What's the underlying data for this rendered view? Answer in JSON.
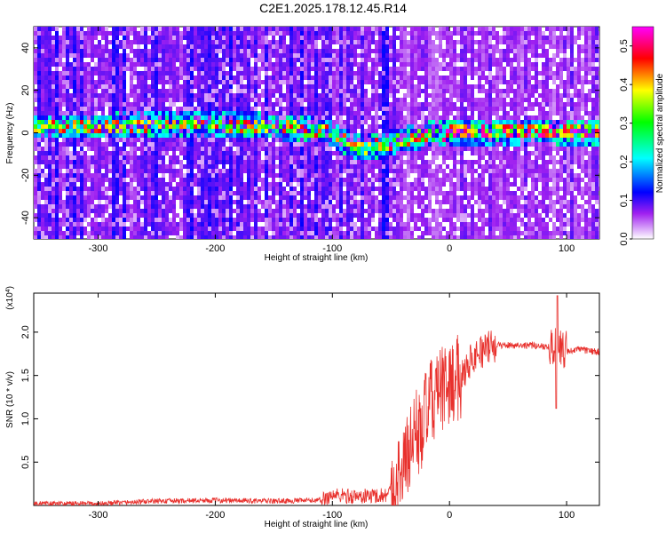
{
  "title": "C2E1.2025.178.12.45.R14",
  "chart_data": [
    {
      "type": "heatmap",
      "xlabel": "Height of straight line (km)",
      "ylabel": "Frequency (Hz)",
      "xlim": [
        -355,
        128
      ],
      "ylim": [
        -50,
        50
      ],
      "xticks": [
        "-300",
        "-200",
        "-100",
        "0",
        "100"
      ],
      "yticks": [
        "40",
        "20",
        "0",
        "-20",
        "-40"
      ],
      "colorbar": {
        "label": "Normalized spectral amplitude",
        "range": [
          0.0,
          0.55
        ],
        "ticks": [
          "0.0",
          "0.1",
          "0.2",
          "0.3",
          "0.4",
          "0.5"
        ],
        "colors": [
          "#ffffff",
          "#a020f0",
          "#0000ff",
          "#00ffff",
          "#00ff00",
          "#ffff00",
          "#ff0000",
          "#ff00ff"
        ]
      },
      "ridge": {
        "description_points_x": [
          -300,
          -250,
          -200,
          -150,
          -110,
          -100,
          -80,
          -60,
          -40,
          -20,
          0,
          40,
          80,
          100,
          128
        ],
        "description_points_y": [
          4,
          5,
          5,
          4,
          2,
          0,
          -6,
          -5,
          -2,
          0,
          1,
          1,
          2,
          1,
          1
        ]
      }
    },
    {
      "type": "line",
      "xlabel": "Height of straight line (km)",
      "ylabel": "SNR (10 * v/v)",
      "y_multiplier": "(x10",
      "y_multiplier_exp": "4",
      "y_multiplier_close": ")",
      "xlim": [
        -355,
        128
      ],
      "ylim": [
        0,
        2.45
      ],
      "xticks": [
        "-300",
        "-200",
        "-100",
        "0",
        "100"
      ],
      "yticks": [
        "0.5",
        "1.0",
        "1.5",
        "2.0"
      ],
      "series_color": "#e8302c",
      "trend": {
        "x": [
          -355,
          -300,
          -250,
          -200,
          -150,
          -110,
          -100,
          -80,
          -55,
          -45,
          -35,
          -30,
          -25,
          -20,
          -10,
          0,
          10,
          20,
          30,
          40,
          60,
          80,
          90,
          95,
          100,
          110,
          128
        ],
        "y": [
          0.02,
          0.02,
          0.05,
          0.06,
          0.05,
          0.06,
          0.12,
          0.1,
          0.12,
          0.25,
          0.6,
          0.9,
          0.8,
          1.1,
          1.3,
          1.4,
          1.5,
          1.72,
          1.8,
          1.85,
          1.85,
          1.84,
          1.83,
          1.78,
          1.78,
          1.8,
          1.77
        ]
      }
    }
  ]
}
